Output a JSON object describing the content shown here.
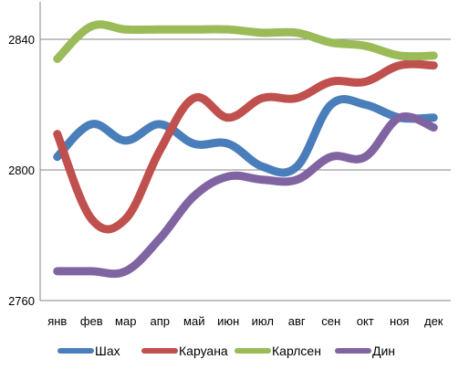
{
  "chart_data": {
    "type": "line",
    "categories": [
      "янв",
      "фев",
      "мар",
      "апр",
      "май",
      "июн",
      "июл",
      "авг",
      "сен",
      "окт",
      "ноя",
      "дек"
    ],
    "ylim": [
      2760,
      2840
    ],
    "yticks": [
      2760,
      2800,
      2840
    ],
    "grid": "horizontal",
    "legend_position": "bottom",
    "smooth": true,
    "series": [
      {
        "name": "Шах",
        "color": "#4a7ebb",
        "values": [
          2804,
          2814,
          2809,
          2814,
          2808,
          2808,
          2801,
          2801,
          2820,
          2820,
          2816,
          2816
        ]
      },
      {
        "name": "Каруана",
        "color": "#c0504d",
        "values": [
          2811,
          2785,
          2785,
          2806,
          2822,
          2816,
          2822,
          2822,
          2827,
          2827,
          2832,
          2832
        ]
      },
      {
        "name": "Карлсен",
        "color": "#9bbb59",
        "values": [
          2834,
          2844,
          2843,
          2843,
          2843,
          2843,
          2842,
          2842,
          2839,
          2838,
          2835,
          2835
        ]
      },
      {
        "name": "Дин",
        "color": "#8064a2",
        "values": [
          2769,
          2769,
          2769,
          2779,
          2792,
          2798,
          2797,
          2797,
          2804,
          2804,
          2816,
          2813
        ]
      }
    ]
  }
}
